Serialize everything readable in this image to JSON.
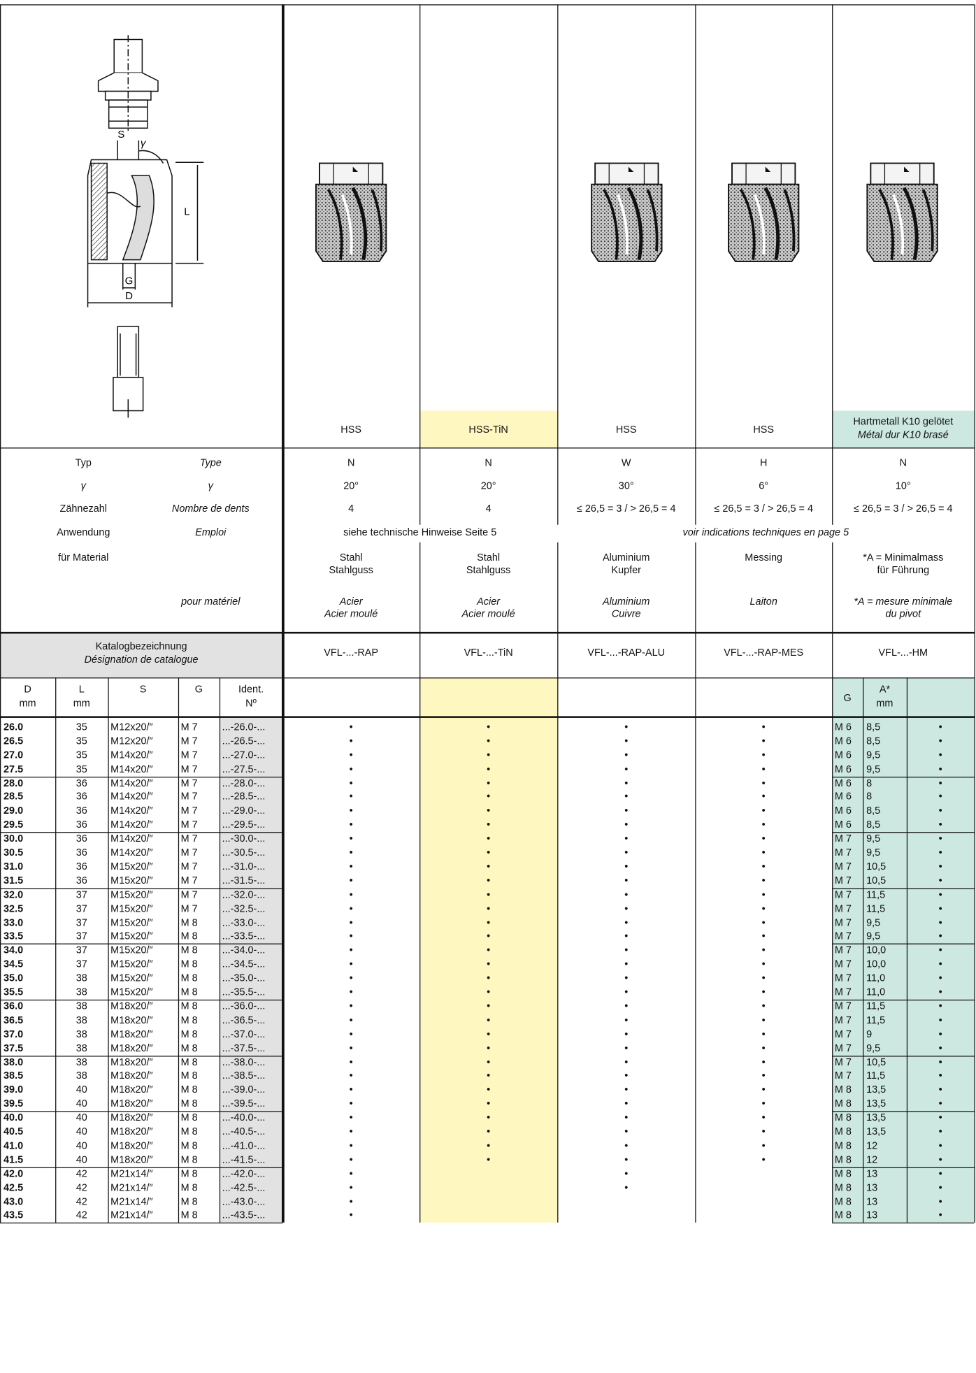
{
  "drawing_labels": {
    "s": "S",
    "gamma": "γ",
    "l": "L",
    "g": "G",
    "d": "D"
  },
  "labels": {
    "typ": [
      "Typ",
      "Type"
    ],
    "gamma": [
      "γ",
      "γ"
    ],
    "teeth": [
      "Zähnezahl",
      "Nombre de dents"
    ],
    "use": [
      "Anwendung",
      "Emploi"
    ],
    "material_de": "für Material",
    "material_fr": "pour matériel",
    "catalog": [
      "Katalogbezeichnung",
      "Désignation de catalogue"
    ]
  },
  "use_note": [
    "siehe technische Hinweise Seite 5",
    "voir indications techniques en page 5"
  ],
  "products": [
    {
      "grade": [
        "HSS"
      ],
      "type": "N",
      "gamma": "20°",
      "teeth": "4",
      "material_de": [
        "Stahl",
        "Stahlguss"
      ],
      "material_fr": [
        "Acier",
        "Acier moulé"
      ],
      "designation": "VFL-...-RAP"
    },
    {
      "grade": [
        "HSS-TiN"
      ],
      "type": "N",
      "gamma": "20°",
      "teeth": "4",
      "material_de": [
        "Stahl",
        "Stahlguss"
      ],
      "material_fr": [
        "Acier",
        "Acier moulé"
      ],
      "designation": "VFL-...-TiN"
    },
    {
      "grade": [
        "HSS"
      ],
      "type": "W",
      "gamma": "30°",
      "teeth": "≤ 26,5 = 3 / > 26,5 = 4",
      "material_de": [
        "Aluminium",
        "Kupfer"
      ],
      "material_fr": [
        "Aluminium",
        "Cuivre"
      ],
      "designation": "VFL-...-RAP-ALU"
    },
    {
      "grade": [
        "HSS"
      ],
      "type": "H",
      "gamma": "6°",
      "teeth": "≤ 26,5 = 3 / > 26,5 = 4",
      "material_de": [
        "Messing"
      ],
      "material_fr": [
        "Laiton"
      ],
      "designation": "VFL-...-RAP-MES"
    },
    {
      "grade": [
        "Hartmetall K10 gelötet",
        "Métal dur K10 brasé"
      ],
      "type": "N",
      "gamma": "10°",
      "teeth": "≤ 26,5 = 3 / > 26,5 = 4",
      "material_de": [
        "*A = Minimalmass",
        "für Führung"
      ],
      "material_fr": [
        "*A = mesure minimale",
        "du pivot"
      ],
      "designation": "VFL-...-HM"
    }
  ],
  "table_header": [
    [
      "D",
      "mm"
    ],
    [
      "L",
      "mm"
    ],
    [
      "S"
    ],
    [
      "G"
    ],
    [
      "Ident.",
      "Nº"
    ]
  ],
  "hm_header": [
    [
      "G"
    ],
    [
      "A*",
      "mm"
    ]
  ],
  "rows": [
    [
      "26.0",
      35,
      "M12x20/″",
      "M 7",
      "...-26.0-...",
      "•",
      "•",
      "•",
      "•",
      "M 6",
      "8,5",
      "•"
    ],
    [
      "26.5",
      35,
      "M12x20/″",
      "M 7",
      "...-26.5-...",
      "•",
      "•",
      "•",
      "•",
      "M 6",
      "8,5",
      "•"
    ],
    [
      "27.0",
      35,
      "M14x20/″",
      "M 7",
      "...-27.0-...",
      "•",
      "•",
      "•",
      "•",
      "M 6",
      "9,5",
      "•"
    ],
    [
      "27.5",
      35,
      "M14x20/″",
      "M 7",
      "...-27.5-...",
      "•",
      "•",
      "•",
      "•",
      "M 6",
      "9,5",
      "•"
    ],
    [
      "28.0",
      36,
      "M14x20/″",
      "M 7",
      "...-28.0-...",
      "•",
      "•",
      "•",
      "•",
      "M 6",
      "8",
      "•"
    ],
    [
      "28.5",
      36,
      "M14x20/″",
      "M 7",
      "...-28.5-...",
      "•",
      "•",
      "•",
      "•",
      "M 6",
      "8",
      "•"
    ],
    [
      "29.0",
      36,
      "M14x20/″",
      "M 7",
      "...-29.0-...",
      "•",
      "•",
      "•",
      "•",
      "M 6",
      "8,5",
      "•"
    ],
    [
      "29.5",
      36,
      "M14x20/″",
      "M 7",
      "...-29.5-...",
      "•",
      "•",
      "•",
      "•",
      "M 6",
      "8,5",
      "•"
    ],
    [
      "30.0",
      36,
      "M14x20/″",
      "M 7",
      "...-30.0-...",
      "•",
      "•",
      "•",
      "•",
      "M 7",
      "9,5",
      "•"
    ],
    [
      "30.5",
      36,
      "M14x20/″",
      "M 7",
      "...-30.5-...",
      "•",
      "•",
      "•",
      "•",
      "M 7",
      "9,5",
      "•"
    ],
    [
      "31.0",
      36,
      "M15x20/″",
      "M 7",
      "...-31.0-...",
      "•",
      "•",
      "•",
      "•",
      "M 7",
      "10,5",
      "•"
    ],
    [
      "31.5",
      36,
      "M15x20/″",
      "M 7",
      "...-31.5-...",
      "•",
      "•",
      "•",
      "•",
      "M 7",
      "10,5",
      "•"
    ],
    [
      "32.0",
      37,
      "M15x20/″",
      "M 7",
      "...-32.0-...",
      "•",
      "•",
      "•",
      "•",
      "M 7",
      "11,5",
      "•"
    ],
    [
      "32.5",
      37,
      "M15x20/″",
      "M 7",
      "...-32.5-...",
      "•",
      "•",
      "•",
      "•",
      "M 7",
      "11,5",
      "•"
    ],
    [
      "33.0",
      37,
      "M15x20/″",
      "M 8",
      "...-33.0-...",
      "•",
      "•",
      "•",
      "•",
      "M 7",
      "9,5",
      "•"
    ],
    [
      "33.5",
      37,
      "M15x20/″",
      "M 8",
      "...-33.5-...",
      "•",
      "•",
      "•",
      "•",
      "M 7",
      "9,5",
      "•"
    ],
    [
      "34.0",
      37,
      "M15x20/″",
      "M 8",
      "...-34.0-...",
      "•",
      "•",
      "•",
      "•",
      "M 7",
      "10,0",
      "•"
    ],
    [
      "34.5",
      37,
      "M15x20/″",
      "M 8",
      "...-34.5-...",
      "•",
      "•",
      "•",
      "•",
      "M 7",
      "10,0",
      "•"
    ],
    [
      "35.0",
      38,
      "M15x20/″",
      "M 8",
      "...-35.0-...",
      "•",
      "•",
      "•",
      "•",
      "M 7",
      "11,0",
      "•"
    ],
    [
      "35.5",
      38,
      "M15x20/″",
      "M 8",
      "...-35.5-...",
      "•",
      "•",
      "•",
      "•",
      "M 7",
      "11,0",
      "•"
    ],
    [
      "36.0",
      38,
      "M18x20/″",
      "M 8",
      "...-36.0-...",
      "•",
      "•",
      "•",
      "•",
      "M 7",
      "11,5",
      "•"
    ],
    [
      "36.5",
      38,
      "M18x20/″",
      "M 8",
      "...-36.5-...",
      "•",
      "•",
      "•",
      "•",
      "M 7",
      "11,5",
      "•"
    ],
    [
      "37.0",
      38,
      "M18x20/″",
      "M 8",
      "...-37.0-...",
      "•",
      "•",
      "•",
      "•",
      "M 7",
      "9",
      "•"
    ],
    [
      "37.5",
      38,
      "M18x20/″",
      "M 8",
      "...-37.5-...",
      "•",
      "•",
      "•",
      "•",
      "M 7",
      "9,5",
      "•"
    ],
    [
      "38.0",
      38,
      "M18x20/″",
      "M 8",
      "...-38.0-...",
      "•",
      "•",
      "•",
      "•",
      "M 7",
      "10,5",
      "•"
    ],
    [
      "38.5",
      38,
      "M18x20/″",
      "M 8",
      "...-38.5-...",
      "•",
      "•",
      "•",
      "•",
      "M 7",
      "11,5",
      "•"
    ],
    [
      "39.0",
      40,
      "M18x20/″",
      "M 8",
      "...-39.0-...",
      "•",
      "•",
      "•",
      "•",
      "M 8",
      "13,5",
      "•"
    ],
    [
      "39.5",
      40,
      "M18x20/″",
      "M 8",
      "...-39.5-...",
      "•",
      "•",
      "•",
      "•",
      "M 8",
      "13,5",
      "•"
    ],
    [
      "40.0",
      40,
      "M18x20/″",
      "M 8",
      "...-40.0-...",
      "•",
      "•",
      "•",
      "•",
      "M 8",
      "13,5",
      "•"
    ],
    [
      "40.5",
      40,
      "M18x20/″",
      "M 8",
      "...-40.5-...",
      "•",
      "•",
      "•",
      "•",
      "M 8",
      "13,5",
      "•"
    ],
    [
      "41.0",
      40,
      "M18x20/″",
      "M 8",
      "...-41.0-...",
      "•",
      "•",
      "•",
      "•",
      "M 8",
      "12",
      "•"
    ],
    [
      "41.5",
      40,
      "M18x20/″",
      "M 8",
      "...-41.5-...",
      "•",
      "•",
      "•",
      "•",
      "M 8",
      "12",
      "•"
    ],
    [
      "42.0",
      42,
      "M21x14/″",
      "M 8",
      "...-42.0-...",
      "•",
      null,
      "•",
      null,
      "M 8",
      "13",
      "•"
    ],
    [
      "42.5",
      42,
      "M21x14/″",
      "M 8",
      "...-42.5-...",
      "•",
      null,
      "•",
      null,
      "M 8",
      "13",
      "•"
    ],
    [
      "43.0",
      42,
      "M21x14/″",
      "M 8",
      "...-43.0-...",
      "•",
      null,
      null,
      null,
      "M 8",
      "13",
      "•"
    ],
    [
      "43.5",
      42,
      "M21x14/″",
      "M 8",
      "...-43.5-...",
      "•",
      null,
      null,
      null,
      "M 8",
      "13",
      "•"
    ]
  ]
}
